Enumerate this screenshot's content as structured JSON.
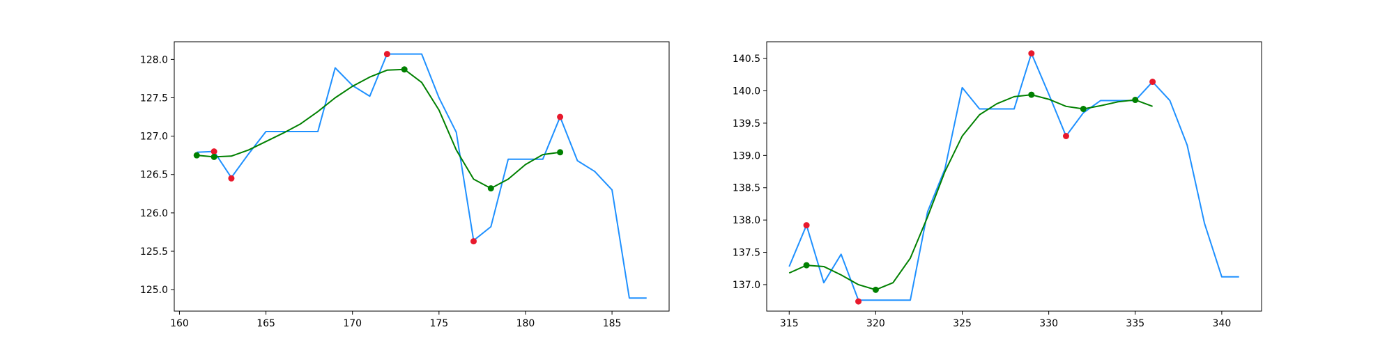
{
  "colors": {
    "price_line": "#1e90ff",
    "smooth_line": "#008000",
    "extrema_red": "#e8192c",
    "extrema_green": "#008000",
    "axes": "#000000",
    "background": "#ffffff"
  },
  "chart_data": [
    {
      "type": "line",
      "title": "",
      "xlabel": "",
      "ylabel": "",
      "xlim": [
        159.7,
        188.3
      ],
      "ylim": [
        124.72,
        128.23
      ],
      "grid": false,
      "legend": "none",
      "xticks": [
        160,
        165,
        170,
        175,
        180,
        185
      ],
      "yticks": [
        125.0,
        125.5,
        126.0,
        126.5,
        127.0,
        127.5,
        128.0
      ],
      "xtick_labels": [
        "160",
        "165",
        "170",
        "175",
        "180",
        "185"
      ],
      "ytick_labels": [
        "125.0",
        "125.5",
        "126.0",
        "126.5",
        "127.0",
        "127.5",
        "128.0"
      ],
      "series": [
        {
          "style": "line",
          "color": "#1e90ff",
          "x": [
            161,
            162,
            163,
            164,
            165,
            166,
            167,
            168,
            169,
            170,
            171,
            172,
            173,
            174,
            175,
            176,
            177,
            178,
            179,
            180,
            181,
            182,
            183,
            184,
            185,
            186,
            187
          ],
          "y": [
            126.79,
            126.8,
            126.46,
            126.77,
            127.06,
            127.06,
            127.06,
            127.06,
            127.89,
            127.66,
            127.52,
            128.07,
            128.07,
            128.07,
            127.5,
            127.05,
            125.64,
            125.82,
            126.7,
            126.7,
            126.7,
            127.25,
            126.68,
            126.54,
            126.3,
            124.89,
            124.89
          ]
        },
        {
          "style": "line",
          "color": "#008000",
          "x": [
            161,
            162,
            163,
            164,
            165,
            166,
            167,
            168,
            169,
            170,
            171,
            172,
            173,
            174,
            175,
            176,
            177,
            178,
            179,
            180,
            181,
            182
          ],
          "y": [
            126.75,
            126.73,
            126.74,
            126.82,
            126.93,
            127.04,
            127.16,
            127.32,
            127.5,
            127.65,
            127.77,
            127.86,
            127.87,
            127.7,
            127.34,
            126.82,
            126.44,
            126.32,
            126.44,
            126.63,
            126.76,
            126.79
          ]
        },
        {
          "style": "scatter",
          "color": "#e8192c",
          "x": [
            162,
            163,
            172,
            177,
            182
          ],
          "y": [
            126.8,
            126.45,
            128.07,
            125.63,
            127.25
          ]
        },
        {
          "style": "scatter",
          "color": "#008000",
          "x": [
            161,
            162,
            173,
            178,
            182
          ],
          "y": [
            126.75,
            126.73,
            127.87,
            126.32,
            126.79
          ]
        }
      ]
    },
    {
      "type": "line",
      "title": "",
      "xlabel": "",
      "ylabel": "",
      "xlim": [
        313.7,
        342.3
      ],
      "ylim": [
        136.59,
        140.76
      ],
      "grid": false,
      "legend": "none",
      "xticks": [
        315,
        320,
        325,
        330,
        335,
        340
      ],
      "yticks": [
        137.0,
        137.5,
        138.0,
        138.5,
        139.0,
        139.5,
        140.0,
        140.5
      ],
      "xtick_labels": [
        "315",
        "320",
        "325",
        "330",
        "335",
        "340"
      ],
      "ytick_labels": [
        "137.0",
        "137.5",
        "138.0",
        "138.5",
        "139.0",
        "139.5",
        "140.0",
        "140.5"
      ],
      "series": [
        {
          "style": "line",
          "color": "#1e90ff",
          "x": [
            315,
            316,
            317,
            318,
            319,
            320,
            321,
            322,
            323,
            324,
            325,
            326,
            327,
            328,
            329,
            330,
            331,
            332,
            333,
            334,
            335,
            336,
            337,
            338,
            339,
            340,
            341
          ],
          "y": [
            137.28,
            137.92,
            137.03,
            137.47,
            136.76,
            136.76,
            136.76,
            136.76,
            138.13,
            138.79,
            140.05,
            139.72,
            139.72,
            139.72,
            140.58,
            139.95,
            139.3,
            139.66,
            139.85,
            139.85,
            139.85,
            140.14,
            139.85,
            139.16,
            137.95,
            137.12,
            137.12
          ]
        },
        {
          "style": "line",
          "color": "#008000",
          "x": [
            315,
            316,
            317,
            318,
            319,
            320,
            321,
            322,
            323,
            324,
            325,
            326,
            327,
            328,
            329,
            330,
            331,
            332,
            333,
            334,
            335,
            336
          ],
          "y": [
            137.18,
            137.3,
            137.28,
            137.15,
            137.0,
            136.92,
            137.03,
            137.41,
            138.05,
            138.75,
            139.3,
            139.63,
            139.8,
            139.91,
            139.94,
            139.87,
            139.76,
            139.72,
            139.77,
            139.83,
            139.86,
            139.76
          ]
        },
        {
          "style": "scatter",
          "color": "#e8192c",
          "x": [
            316,
            319,
            329,
            331,
            336
          ],
          "y": [
            137.92,
            136.74,
            140.58,
            139.3,
            140.14
          ]
        },
        {
          "style": "scatter",
          "color": "#008000",
          "x": [
            316,
            320,
            329,
            332,
            335
          ],
          "y": [
            137.3,
            136.92,
            139.94,
            139.72,
            139.86
          ]
        }
      ]
    }
  ]
}
